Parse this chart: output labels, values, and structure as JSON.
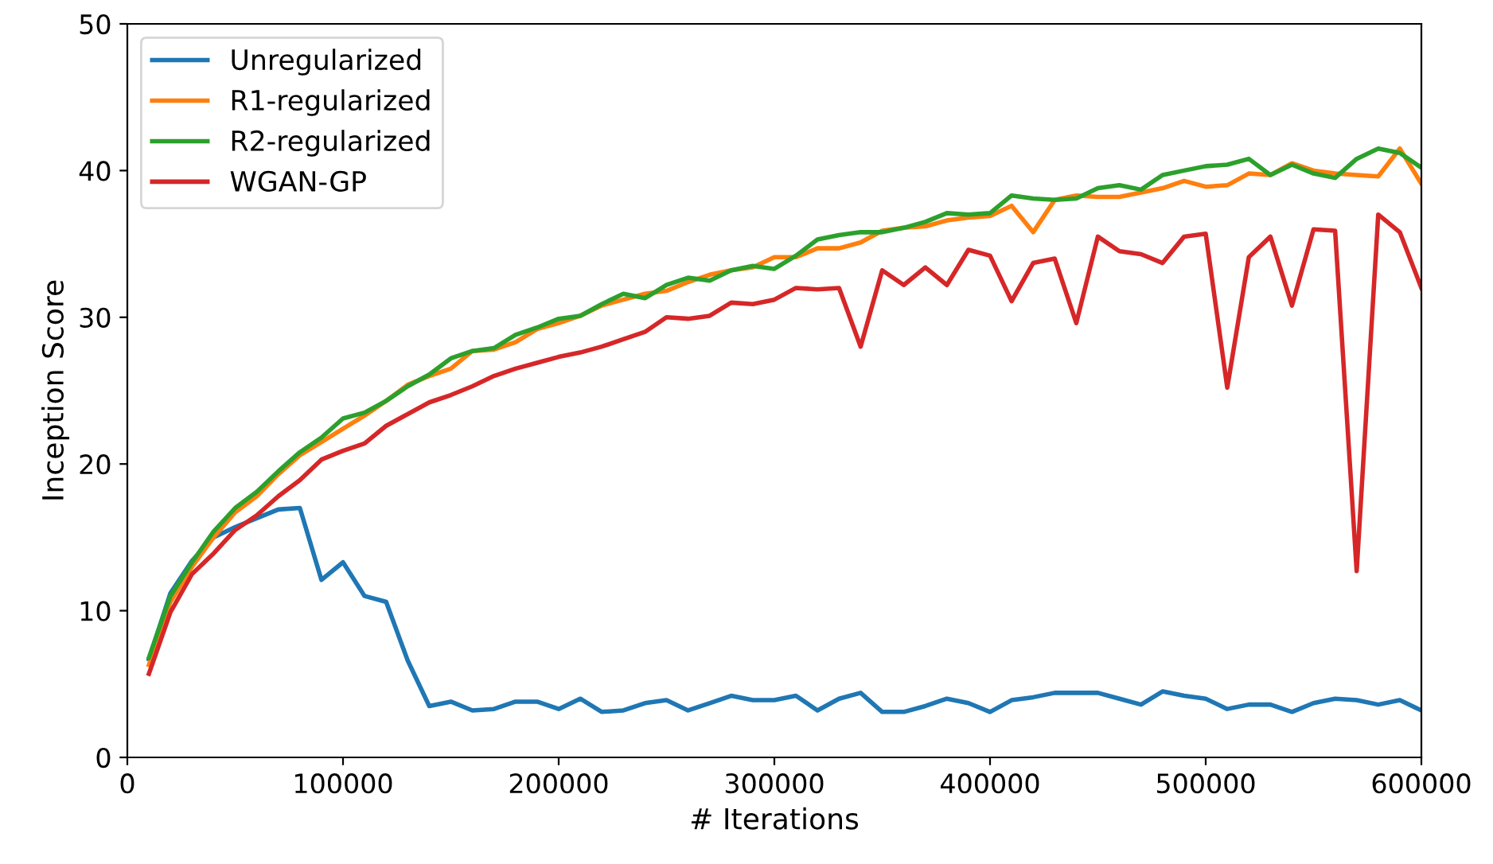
{
  "chart_data": {
    "type": "line",
    "xlabel": "# Iterations",
    "ylabel": "Inception Score",
    "xlim": [
      0,
      600000
    ],
    "xticks": [
      0,
      100000,
      200000,
      300000,
      400000,
      500000,
      600000
    ],
    "ylim": [
      0,
      50
    ],
    "yticks": [
      0,
      10,
      20,
      30,
      40,
      50
    ],
    "grid": false,
    "legend": "top left",
    "x": [
      10000,
      20000,
      30000,
      40000,
      50000,
      60000,
      70000,
      80000,
      90000,
      100000,
      110000,
      120000,
      130000,
      140000,
      150000,
      160000,
      170000,
      180000,
      190000,
      200000,
      210000,
      220000,
      230000,
      240000,
      250000,
      260000,
      270000,
      280000,
      290000,
      300000,
      310000,
      320000,
      330000,
      340000,
      350000,
      360000,
      370000,
      380000,
      390000,
      400000,
      410000,
      420000,
      430000,
      440000,
      450000,
      460000,
      470000,
      480000,
      490000,
      500000,
      510000,
      520000,
      530000,
      540000,
      550000,
      560000,
      570000,
      580000,
      590000,
      600000
    ],
    "series": [
      {
        "name": "Unregularized",
        "color": "#1f77b4",
        "values": [
          6.7,
          11.2,
          13.4,
          15.0,
          15.7,
          16.3,
          16.9,
          17.0,
          12.1,
          13.3,
          11.0,
          10.6,
          6.6,
          3.5,
          3.8,
          3.2,
          3.3,
          3.8,
          3.8,
          3.3,
          4.0,
          3.1,
          3.2,
          3.7,
          3.9,
          3.2,
          3.7,
          4.2,
          3.9,
          3.9,
          4.2,
          3.2,
          4.0,
          4.4,
          3.1,
          3.1,
          3.5,
          4.0,
          3.7,
          3.1,
          3.9,
          4.1,
          4.4,
          4.4,
          4.4,
          4.0,
          3.6,
          4.5,
          4.2,
          4.0,
          3.3,
          3.6,
          3.6,
          3.1,
          3.7,
          4.0,
          3.9,
          3.6,
          3.9,
          3.2
        ]
      },
      {
        "name": "R1-regularized",
        "color": "#ff7f0e",
        "values": [
          6.3,
          10.6,
          13.0,
          15.0,
          16.7,
          17.8,
          19.3,
          20.6,
          21.5,
          22.4,
          23.3,
          24.3,
          25.4,
          26.0,
          26.5,
          27.7,
          27.8,
          28.3,
          29.2,
          29.6,
          30.1,
          30.8,
          31.2,
          31.6,
          31.8,
          32.4,
          32.9,
          33.2,
          33.4,
          34.1,
          34.1,
          34.7,
          34.7,
          35.1,
          35.9,
          36.1,
          36.2,
          36.6,
          36.8,
          36.9,
          37.6,
          35.8,
          38.0,
          38.3,
          38.2,
          38.2,
          38.5,
          38.8,
          39.3,
          38.9,
          39.0,
          39.8,
          39.7,
          40.5,
          40.0,
          39.8,
          39.7,
          39.6,
          41.5,
          39.1
        ]
      },
      {
        "name": "R2-regularized",
        "color": "#2ca02c",
        "values": [
          6.8,
          11.0,
          13.3,
          15.4,
          17.0,
          18.1,
          19.5,
          20.8,
          21.8,
          23.1,
          23.5,
          24.3,
          25.3,
          26.1,
          27.2,
          27.7,
          27.9,
          28.8,
          29.3,
          29.9,
          30.1,
          30.9,
          31.6,
          31.3,
          32.2,
          32.7,
          32.5,
          33.2,
          33.5,
          33.3,
          34.2,
          35.3,
          35.6,
          35.8,
          35.8,
          36.1,
          36.5,
          37.1,
          37.0,
          37.1,
          38.3,
          38.1,
          38.0,
          38.1,
          38.8,
          39.0,
          38.7,
          39.7,
          40.0,
          40.3,
          40.4,
          40.8,
          39.7,
          40.4,
          39.8,
          39.5,
          40.8,
          41.5,
          41.2,
          40.2
        ]
      },
      {
        "name": "WGAN-GP",
        "color": "#d62728",
        "values": [
          5.7,
          9.9,
          12.5,
          13.9,
          15.5,
          16.5,
          17.8,
          18.9,
          20.3,
          20.9,
          21.4,
          22.6,
          23.4,
          24.2,
          24.7,
          25.3,
          26.0,
          26.5,
          26.9,
          27.3,
          27.6,
          28.0,
          28.5,
          29.0,
          30.0,
          29.9,
          30.1,
          31.0,
          30.9,
          31.2,
          32.0,
          31.9,
          32.0,
          28.0,
          33.2,
          32.2,
          33.4,
          32.2,
          34.6,
          34.2,
          31.1,
          33.7,
          34.0,
          29.6,
          35.5,
          34.5,
          34.3,
          33.7,
          35.5,
          35.7,
          25.2,
          34.1,
          35.5,
          30.8,
          36.0,
          35.9,
          12.7,
          37.0,
          35.8,
          32.0
        ]
      }
    ]
  }
}
